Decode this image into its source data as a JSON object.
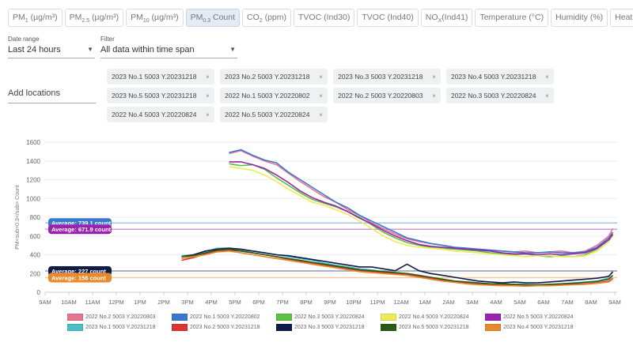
{
  "tabs": [
    {
      "main": "PM",
      "sub": "1",
      "rest": " (µg/m³)"
    },
    {
      "main": "PM",
      "sub": "2.5",
      "rest": " (µg/m³)"
    },
    {
      "main": "PM",
      "sub": "10",
      "rest": " (µg/m³)"
    },
    {
      "main": "PM",
      "sub": "0.3",
      "rest": " Count",
      "active": true
    },
    {
      "main": "CO",
      "sub": "2",
      "rest": " (ppm)"
    },
    {
      "main": "TVOC (Ind30)",
      "sub": "",
      "rest": ""
    },
    {
      "main": "TVOC (Ind40)",
      "sub": "",
      "rest": ""
    },
    {
      "main": "NO",
      "sub": "X",
      "rest": "(Ind41)"
    },
    {
      "main": "Temperature (°C)",
      "sub": "",
      "rest": ""
    },
    {
      "main": "Humidity (%)",
      "sub": "",
      "rest": ""
    },
    {
      "main": "Heat (°C)",
      "sub": "",
      "rest": ""
    }
  ],
  "date_range": {
    "label": "Date range",
    "value": "Last 24 hours"
  },
  "filter": {
    "label": "Filter",
    "value": "All data within time span"
  },
  "add_locations": "Add locations",
  "chips": [
    "2023 No.1 5003 Y.20231218",
    "2023 No.2 5003 Y.20231218",
    "2023 No.3 5003 Y.20231218",
    "2023 No.4 5003 Y.20231218",
    "2023 No.5 5003 Y.20231218",
    "2022 No.1 5003 Y.20220802",
    "2022 No.2 5003 Y.20220803",
    "2022 No.3 5003 Y.20220824",
    "2022 No.4 5003 Y.20220824",
    "2022 No.5 5003 Y.20220824"
  ],
  "chip_remove": "×",
  "chart_data": {
    "type": "line",
    "ylabel": "PM<sub>0.3</sub> Count",
    "ylim": [
      0,
      1600
    ],
    "yticks": [
      0,
      200,
      400,
      600,
      800,
      1000,
      1200,
      1400,
      1600
    ],
    "xticks": [
      "9AM",
      "10AM",
      "11AM",
      "12PM",
      "1PM",
      "2PM",
      "3PM",
      "4PM",
      "5PM",
      "6PM",
      "7PM",
      "8PM",
      "9PM",
      "10PM",
      "11PM",
      "12AM",
      "1AM",
      "2AM",
      "3AM",
      "4AM",
      "5AM",
      "6AM",
      "7AM",
      "8AM",
      "9AM"
    ],
    "grid": true,
    "times_2022": [
      "16:45",
      "17:15",
      "17:45",
      "18:15",
      "18:45",
      "19:15",
      "19:45",
      "20:15",
      "20:45",
      "21:15",
      "21:45",
      "22:15",
      "22:45",
      "23:15",
      "23:45",
      "00:15",
      "00:45",
      "01:15",
      "01:45",
      "02:15",
      "02:45",
      "03:15",
      "03:45",
      "04:15",
      "04:45",
      "05:15",
      "05:45",
      "06:15",
      "06:45",
      "07:15",
      "07:45",
      "08:15",
      "08:45",
      "08:55"
    ],
    "times_2023": [
      "14:45",
      "15:15",
      "15:45",
      "16:15",
      "16:45",
      "17:15",
      "17:45",
      "18:15",
      "18:45",
      "19:15",
      "19:45",
      "20:15",
      "20:45",
      "21:15",
      "21:45",
      "22:15",
      "22:45",
      "23:15",
      "23:45",
      "00:15",
      "00:45",
      "01:15",
      "01:45",
      "02:15",
      "02:45",
      "03:15",
      "03:45",
      "04:15",
      "04:45",
      "05:15",
      "05:45",
      "06:15",
      "06:45",
      "07:15",
      "07:45",
      "08:15",
      "08:45",
      "08:55"
    ],
    "series": [
      {
        "name": "2022 No.2 5003 Y.20220803",
        "color": "#e8758f",
        "times": "times_2022",
        "values": [
          1480,
          1510,
          1450,
          1400,
          1360,
          1270,
          1180,
          1100,
          1020,
          960,
          880,
          820,
          740,
          680,
          620,
          570,
          540,
          520,
          500,
          480,
          470,
          460,
          450,
          440,
          430,
          440,
          420,
          430,
          440,
          420,
          440,
          500,
          600,
          680
        ]
      },
      {
        "name": "2022 No.1 5003 Y.20220802",
        "color": "#3a78d0",
        "times": "times_2022",
        "values": [
          1490,
          1520,
          1460,
          1410,
          1380,
          1280,
          1200,
          1120,
          1040,
          960,
          900,
          820,
          760,
          700,
          640,
          580,
          550,
          520,
          500,
          480,
          470,
          460,
          450,
          440,
          430,
          420,
          420,
          430,
          420,
          420,
          430,
          480,
          580,
          640
        ]
      },
      {
        "name": "2022 No.3 5003 Y.20220824",
        "color": "#5cc040",
        "times": "times_2022",
        "values": [
          1370,
          1350,
          1360,
          1310,
          1220,
          1140,
          1060,
          990,
          950,
          910,
          860,
          800,
          720,
          640,
          580,
          530,
          500,
          480,
          470,
          460,
          450,
          440,
          420,
          410,
          400,
          410,
          390,
          380,
          390,
          380,
          400,
          460,
          560,
          610
        ]
      },
      {
        "name": "2022 No.4 5003 Y.20220824",
        "color": "#eeea5a",
        "times": "times_2022",
        "values": [
          1340,
          1320,
          1300,
          1250,
          1180,
          1100,
          1030,
          960,
          930,
          880,
          830,
          760,
          680,
          600,
          540,
          500,
          480,
          470,
          460,
          440,
          430,
          420,
          410,
          400,
          390,
          380,
          390,
          390,
          380,
          380,
          390,
          440,
          540,
          600
        ]
      },
      {
        "name": "2022 No.5 5003 Y.20220824",
        "color": "#9a22b0",
        "times": "times_2022",
        "values": [
          1390,
          1390,
          1360,
          1320,
          1250,
          1170,
          1080,
          1010,
          960,
          920,
          860,
          790,
          730,
          660,
          600,
          550,
          510,
          490,
          480,
          470,
          460,
          450,
          440,
          420,
          410,
          410,
          400,
          410,
          400,
          410,
          420,
          470,
          560,
          620
        ]
      },
      {
        "name": "2023 No.1 5003 Y.20231218",
        "color": "#4cc0c4",
        "times": "times_2023",
        "values": [
          390,
          400,
          430,
          470,
          470,
          450,
          440,
          420,
          400,
          380,
          360,
          340,
          310,
          290,
          270,
          250,
          240,
          220,
          200,
          180,
          160,
          140,
          120,
          110,
          100,
          95,
          90,
          90,
          85,
          85,
          80,
          85,
          90,
          100,
          110,
          120,
          150,
          180
        ]
      },
      {
        "name": "2023 No.2 5003 Y.20231218",
        "color": "#e03434",
        "times": "times_2023",
        "values": [
          340,
          370,
          410,
          440,
          450,
          440,
          420,
          400,
          380,
          350,
          330,
          310,
          290,
          270,
          250,
          230,
          220,
          210,
          200,
          190,
          170,
          150,
          130,
          110,
          95,
          85,
          80,
          75,
          75,
          70,
          70,
          75,
          80,
          85,
          90,
          100,
          120,
          150
        ]
      },
      {
        "name": "2023 No.3 5003 Y.20231218",
        "color": "#101c48",
        "times": "times_2023",
        "values": [
          380,
          400,
          440,
          460,
          470,
          460,
          440,
          420,
          400,
          390,
          370,
          350,
          330,
          310,
          290,
          270,
          270,
          250,
          230,
          300,
          230,
          200,
          180,
          160,
          140,
          120,
          110,
          100,
          110,
          100,
          100,
          110,
          120,
          130,
          140,
          150,
          170,
          220
        ]
      },
      {
        "name": "2023 No.5 5003 Y.20231218",
        "color": "#2a5a16",
        "times": "times_2023",
        "values": [
          380,
          390,
          420,
          450,
          460,
          440,
          420,
          400,
          380,
          360,
          340,
          320,
          300,
          280,
          260,
          240,
          230,
          220,
          210,
          200,
          180,
          160,
          140,
          120,
          110,
          100,
          90,
          90,
          85,
          80,
          80,
          85,
          90,
          95,
          105,
          115,
          140,
          180
        ]
      },
      {
        "name": "2023 No.4 5003 Y.20231218",
        "color": "#e8892c",
        "times": "times_2023",
        "values": [
          360,
          380,
          400,
          430,
          440,
          420,
          400,
          380,
          360,
          340,
          320,
          300,
          280,
          260,
          240,
          220,
          210,
          200,
          190,
          180,
          160,
          140,
          120,
          105,
          90,
          80,
          75,
          70,
          70,
          65,
          70,
          70,
          75,
          80,
          85,
          95,
          110,
          140
        ]
      }
    ],
    "averages": [
      {
        "label": "Average: 739.1 count",
        "value": 739.1,
        "color": "#3a78d0"
      },
      {
        "label": "Average: 671.9 count",
        "value": 671.9,
        "color": "#9a22b0"
      },
      {
        "label": "Average: 227 count",
        "value": 227,
        "color": "#101c48"
      },
      {
        "label": "Average: 156 count",
        "value": 156,
        "color": "#e8892c"
      }
    ],
    "legend_order": [
      0,
      1,
      2,
      3,
      4,
      5,
      6,
      7,
      8,
      9
    ],
    "legend": "bottom"
  }
}
